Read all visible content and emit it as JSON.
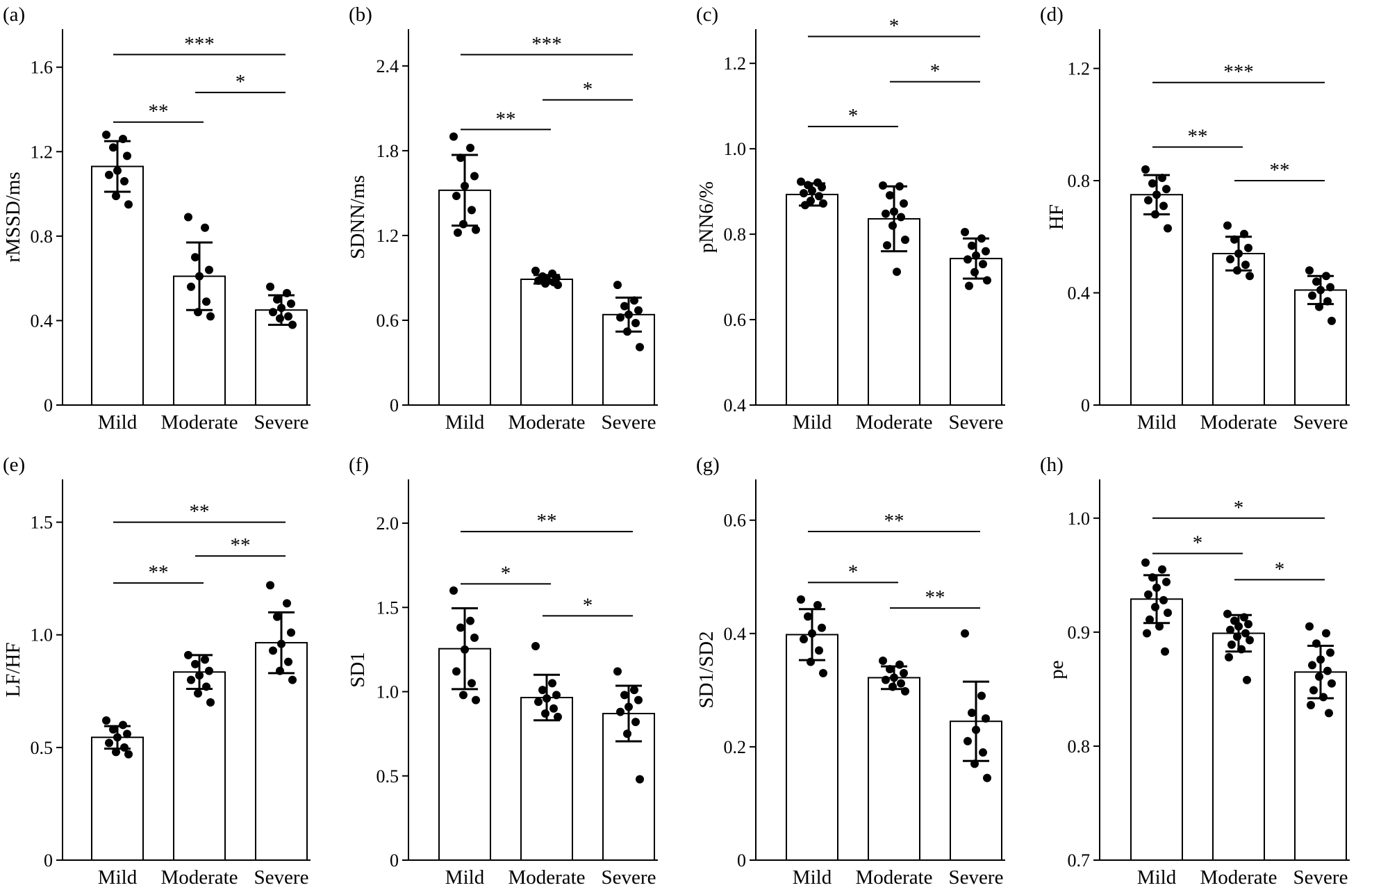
{
  "chart_data": [
    {
      "panel": "(a)",
      "type": "bar",
      "ylabel": "rMSSD/ms",
      "categories": [
        "Mild",
        "Moderate",
        "Severe"
      ],
      "ylim": [
        0,
        1.78
      ],
      "yticks": [
        "0",
        "0.4",
        "0.8",
        "1.2",
        "1.6"
      ],
      "ytick_values": [
        0,
        0.4,
        0.8,
        1.2,
        1.6
      ],
      "values": [
        1.13,
        0.61,
        0.45
      ],
      "error": [
        0.12,
        0.16,
        0.07
      ],
      "points": [
        [
          1.28,
          1.26,
          1.22,
          1.18,
          1.11,
          1.09,
          1.06,
          0.99,
          0.95
        ],
        [
          0.89,
          0.84,
          0.7,
          0.64,
          0.61,
          0.56,
          0.49,
          0.44,
          0.42
        ],
        [
          0.56,
          0.53,
          0.5,
          0.48,
          0.46,
          0.44,
          0.42,
          0.41,
          0.38
        ]
      ],
      "brackets": [
        {
          "from": 0,
          "to": 1,
          "y": 1.34,
          "label": "**"
        },
        {
          "from": 1,
          "to": 2,
          "y": 1.48,
          "label": "*"
        },
        {
          "from": 0,
          "to": 2,
          "y": 1.66,
          "label": "***"
        }
      ]
    },
    {
      "panel": "(b)",
      "type": "bar",
      "ylabel": "SDNN/ms",
      "categories": [
        "Mild",
        "Moderate",
        "Severe"
      ],
      "ylim": [
        0,
        2.66
      ],
      "yticks": [
        "0",
        "0.6",
        "1.2",
        "1.8",
        "2.4"
      ],
      "ytick_values": [
        0,
        0.6,
        1.2,
        1.8,
        2.4
      ],
      "values": [
        1.52,
        0.89,
        0.64
      ],
      "error": [
        0.25,
        0.03,
        0.12
      ],
      "points": [
        [
          1.9,
          1.82,
          1.75,
          1.62,
          1.55,
          1.48,
          1.38,
          1.28,
          1.24,
          1.22
        ],
        [
          0.95,
          0.93,
          0.91,
          0.9,
          0.89,
          0.88,
          0.87,
          0.86,
          0.85
        ],
        [
          0.85,
          0.74,
          0.7,
          0.67,
          0.64,
          0.62,
          0.58,
          0.52,
          0.41
        ]
      ],
      "brackets": [
        {
          "from": 0,
          "to": 1,
          "y": 1.95,
          "label": "**"
        },
        {
          "from": 1,
          "to": 2,
          "y": 2.16,
          "label": "*"
        },
        {
          "from": 0,
          "to": 2,
          "y": 2.48,
          "label": "***"
        }
      ]
    },
    {
      "panel": "(c)",
      "type": "bar",
      "ylabel": "pNN6/%",
      "categories": [
        "Mild",
        "Moderate",
        "Severe"
      ],
      "ylim": [
        0.4,
        1.28
      ],
      "yticks": [
        "0.4",
        "0.6",
        "0.8",
        "1.0",
        "1.2"
      ],
      "ytick_values": [
        0.4,
        0.6,
        0.8,
        1.0,
        1.2
      ],
      "values": [
        0.893,
        0.836,
        0.743
      ],
      "error": [
        0.026,
        0.076,
        0.047
      ],
      "points": [
        [
          0.923,
          0.921,
          0.915,
          0.91,
          0.902,
          0.896,
          0.889,
          0.878,
          0.872,
          0.868
        ],
        [
          0.914,
          0.912,
          0.891,
          0.872,
          0.853,
          0.848,
          0.84,
          0.82,
          0.787,
          0.774,
          0.712
        ],
        [
          0.805,
          0.79,
          0.773,
          0.76,
          0.75,
          0.741,
          0.73,
          0.711,
          0.692,
          0.679
        ]
      ],
      "brackets": [
        {
          "from": 0,
          "to": 1,
          "y": 1.052,
          "label": "*"
        },
        {
          "from": 1,
          "to": 2,
          "y": 1.157,
          "label": "*"
        },
        {
          "from": 0,
          "to": 2,
          "y": 1.263,
          "label": "*"
        }
      ]
    },
    {
      "panel": "(d)",
      "type": "bar",
      "ylabel": "HF",
      "categories": [
        "Mild",
        "Moderate",
        "Severe"
      ],
      "ylim": [
        0,
        1.34
      ],
      "yticks": [
        "0",
        "0.4",
        "0.8",
        "1.2"
      ],
      "ytick_values": [
        0,
        0.4,
        0.8,
        1.2
      ],
      "values": [
        0.75,
        0.54,
        0.41
      ],
      "error": [
        0.07,
        0.06,
        0.05
      ],
      "points": [
        [
          0.84,
          0.81,
          0.79,
          0.77,
          0.75,
          0.73,
          0.71,
          0.68,
          0.63
        ],
        [
          0.64,
          0.61,
          0.59,
          0.56,
          0.54,
          0.52,
          0.5,
          0.48,
          0.46
        ],
        [
          0.48,
          0.46,
          0.44,
          0.42,
          0.41,
          0.39,
          0.37,
          0.35,
          0.3
        ]
      ],
      "brackets": [
        {
          "from": 0,
          "to": 1,
          "y": 0.92,
          "label": "**"
        },
        {
          "from": 1,
          "to": 2,
          "y": 0.8,
          "label": "**"
        },
        {
          "from": 0,
          "to": 2,
          "y": 1.15,
          "label": "***"
        }
      ]
    },
    {
      "panel": "(e)",
      "type": "bar",
      "ylabel": "LF/HF",
      "categories": [
        "Mild",
        "Moderate",
        "Severe"
      ],
      "ylim": [
        0,
        1.69
      ],
      "yticks": [
        "0",
        "0.5",
        "1.0",
        "1.5"
      ],
      "ytick_values": [
        0,
        0.5,
        1.0,
        1.5
      ],
      "values": [
        0.545,
        0.835,
        0.965
      ],
      "error": [
        0.05,
        0.075,
        0.135
      ],
      "points": [
        [
          0.62,
          0.6,
          0.58,
          0.56,
          0.545,
          0.52,
          0.5,
          0.48,
          0.47
        ],
        [
          0.91,
          0.89,
          0.87,
          0.84,
          0.82,
          0.8,
          0.77,
          0.74,
          0.7
        ],
        [
          1.22,
          1.14,
          1.08,
          1.01,
          0.96,
          0.93,
          0.88,
          0.84,
          0.8
        ]
      ],
      "brackets": [
        {
          "from": 0,
          "to": 1,
          "y": 1.23,
          "label": "**"
        },
        {
          "from": 1,
          "to": 2,
          "y": 1.35,
          "label": "**"
        },
        {
          "from": 0,
          "to": 2,
          "y": 1.5,
          "label": "**"
        }
      ]
    },
    {
      "panel": "(f)",
      "type": "bar",
      "ylabel": "SD1",
      "categories": [
        "Mild",
        "Moderate",
        "Severe"
      ],
      "ylim": [
        0,
        2.26
      ],
      "yticks": [
        "0",
        "0.5",
        "1.0",
        "1.5",
        "2.0"
      ],
      "ytick_values": [
        0,
        0.5,
        1.0,
        1.5,
        2.0
      ],
      "values": [
        1.255,
        0.965,
        0.87
      ],
      "error": [
        0.24,
        0.135,
        0.165
      ],
      "points": [
        [
          1.6,
          1.42,
          1.38,
          1.32,
          1.25,
          1.12,
          1.05,
          0.98,
          0.95
        ],
        [
          1.27,
          1.05,
          1.01,
          0.98,
          0.96,
          0.94,
          0.9,
          0.87,
          0.85
        ],
        [
          1.12,
          1.01,
          0.98,
          0.95,
          0.91,
          0.88,
          0.82,
          0.75,
          0.48
        ]
      ],
      "brackets": [
        {
          "from": 0,
          "to": 1,
          "y": 1.64,
          "label": "*"
        },
        {
          "from": 1,
          "to": 2,
          "y": 1.45,
          "label": "*"
        },
        {
          "from": 0,
          "to": 2,
          "y": 1.95,
          "label": "**"
        }
      ]
    },
    {
      "panel": "(g)",
      "type": "bar",
      "ylabel": "SD1/SD2",
      "categories": [
        "Mild",
        "Moderate",
        "Severe"
      ],
      "ylim": [
        0,
        0.672
      ],
      "yticks": [
        "0",
        "0.2",
        "0.4",
        "0.6"
      ],
      "ytick_values": [
        0,
        0.2,
        0.4,
        0.6
      ],
      "values": [
        0.398,
        0.322,
        0.245
      ],
      "error": [
        0.045,
        0.02,
        0.07
      ],
      "points": [
        [
          0.46,
          0.45,
          0.43,
          0.41,
          0.4,
          0.39,
          0.37,
          0.35,
          0.33
        ],
        [
          0.352,
          0.345,
          0.337,
          0.33,
          0.322,
          0.318,
          0.312,
          0.306,
          0.298
        ],
        [
          0.4,
          0.29,
          0.26,
          0.25,
          0.23,
          0.21,
          0.19,
          0.17,
          0.145
        ]
      ],
      "brackets": [
        {
          "from": 0,
          "to": 1,
          "y": 0.49,
          "label": "*"
        },
        {
          "from": 1,
          "to": 2,
          "y": 0.445,
          "label": "**"
        },
        {
          "from": 0,
          "to": 2,
          "y": 0.58,
          "label": "**"
        }
      ]
    },
    {
      "panel": "(h)",
      "type": "bar",
      "ylabel": "pe",
      "categories": [
        "Mild",
        "Moderate",
        "Severe"
      ],
      "ylim": [
        0.7,
        1.034
      ],
      "yticks": [
        "0.7",
        "0.8",
        "0.9",
        "1.0"
      ],
      "ytick_values": [
        0.7,
        0.8,
        0.9,
        1.0
      ],
      "values": [
        0.929,
        0.899,
        0.865
      ],
      "error": [
        0.021,
        0.016,
        0.023
      ],
      "points": [
        [
          0.961,
          0.955,
          0.948,
          0.944,
          0.939,
          0.933,
          0.928,
          0.922,
          0.917,
          0.911,
          0.905,
          0.899,
          0.883
        ],
        [
          0.916,
          0.913,
          0.91,
          0.907,
          0.905,
          0.902,
          0.899,
          0.896,
          0.893,
          0.889,
          0.885,
          0.878,
          0.858
        ],
        [
          0.905,
          0.899,
          0.89,
          0.882,
          0.876,
          0.871,
          0.866,
          0.861,
          0.855,
          0.849,
          0.843,
          0.836,
          0.829
        ]
      ],
      "brackets": [
        {
          "from": 0,
          "to": 1,
          "y": 0.969,
          "label": "*"
        },
        {
          "from": 1,
          "to": 2,
          "y": 0.946,
          "label": "*"
        },
        {
          "from": 0,
          "to": 2,
          "y": 1.0,
          "label": "*"
        }
      ]
    }
  ]
}
